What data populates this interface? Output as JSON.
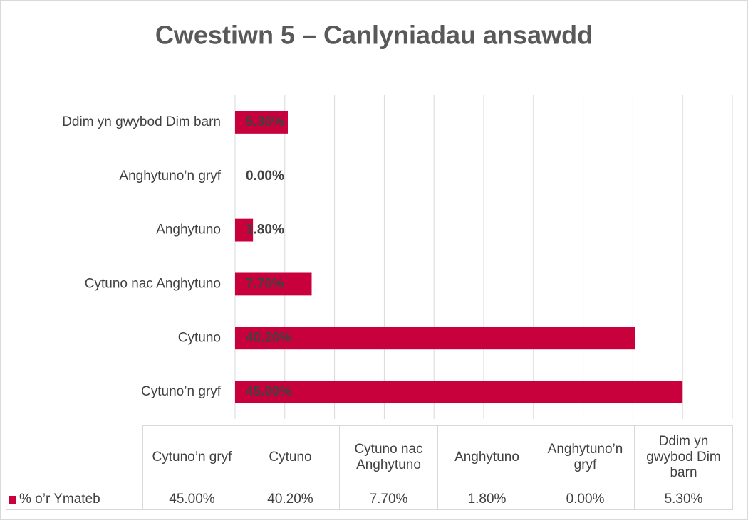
{
  "chart_data": {
    "type": "bar",
    "orientation": "horizontal",
    "title": "Cwestiwn 5 – Canlyniadau ansawdd",
    "categories": [
      "Cytuno’n gryf",
      "Cytuno",
      "Cytuno nac Anghytuno",
      "Anghytuno",
      "Anghytuno’n gryf",
      "Ddim yn gwybod Dim barn"
    ],
    "series": [
      {
        "name": "% o’r Ymateb",
        "color": "#c8003c",
        "values": [
          45,
          40.2,
          7.7,
          1.8,
          0,
          5.3
        ],
        "value_labels": [
          "45.00%",
          "40.20%",
          "7.70%",
          "1.80%",
          "0.00%",
          "5.30%"
        ]
      }
    ],
    "xlim": [
      0,
      50
    ],
    "xticks": [
      0,
      5,
      10,
      15,
      20,
      25,
      30,
      35,
      40,
      45,
      50
    ],
    "grid": true,
    "data_table": true
  }
}
